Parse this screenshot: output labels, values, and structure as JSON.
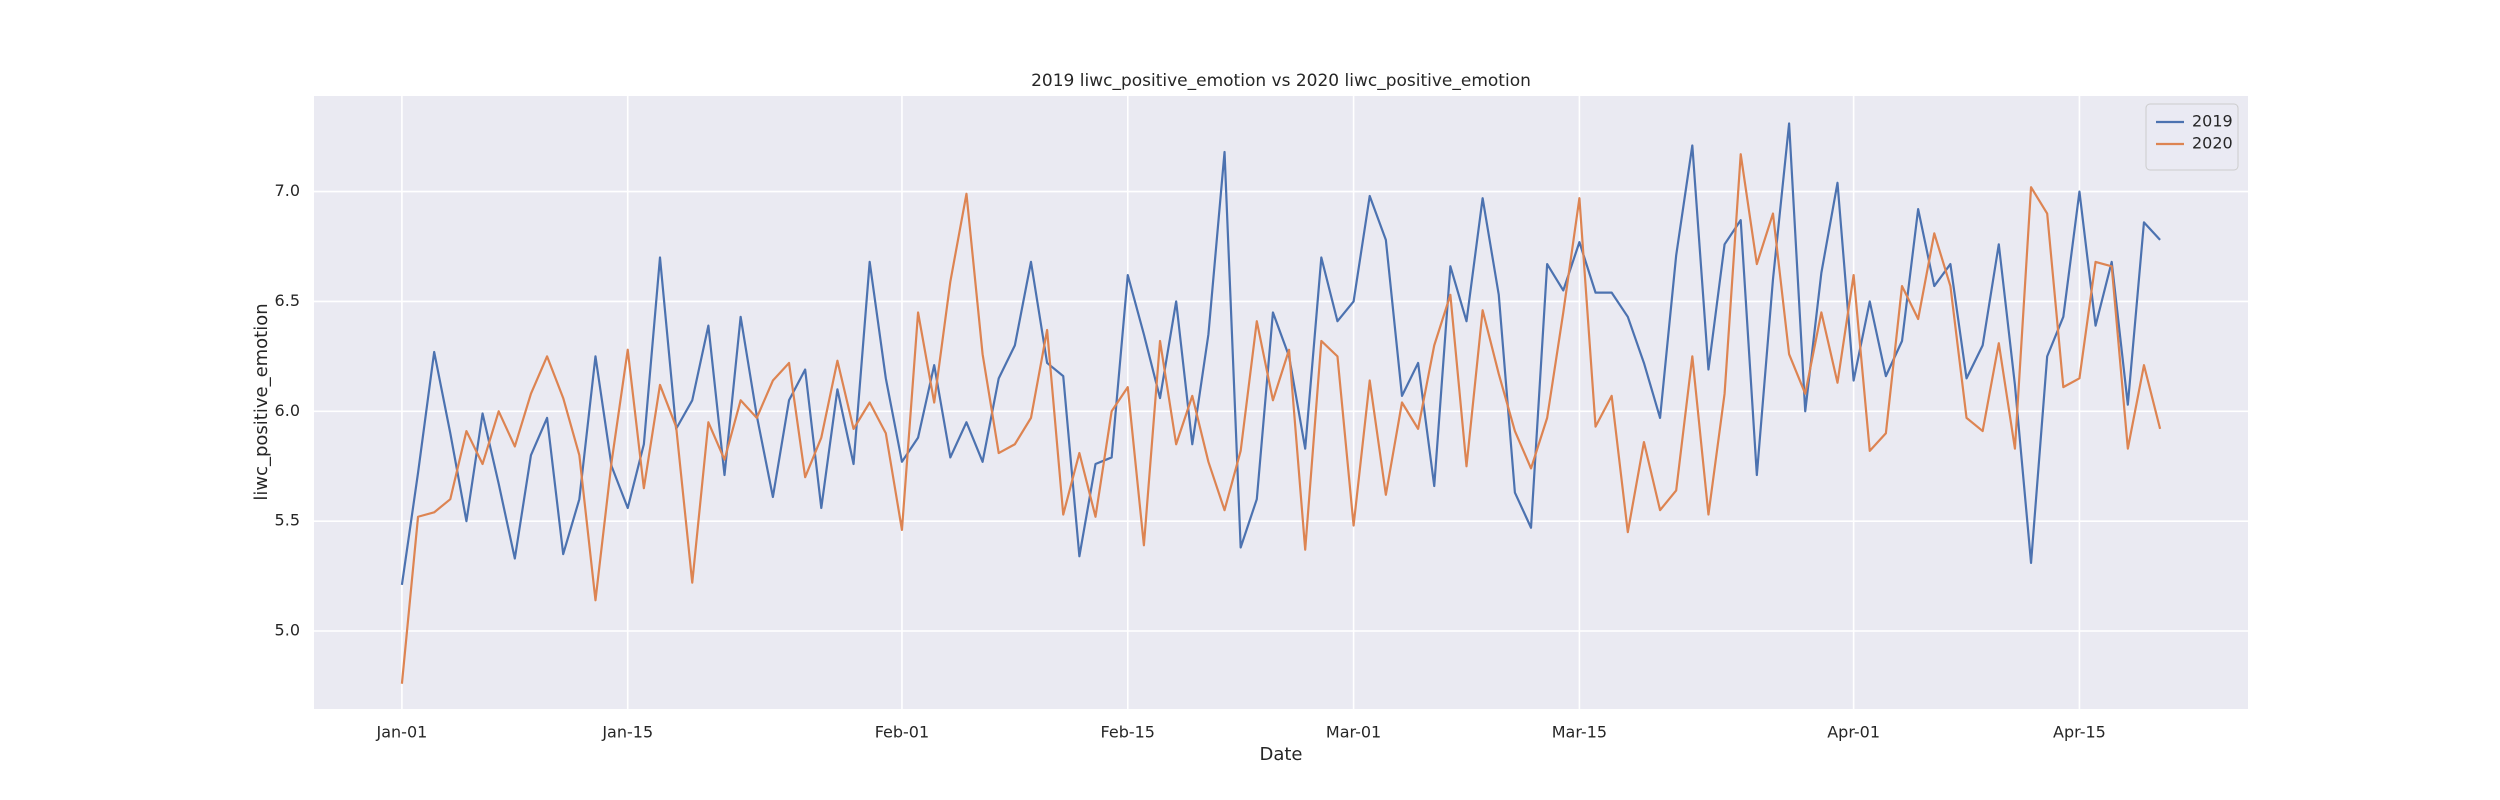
{
  "chart_data": {
    "type": "line",
    "title": "2019 liwc_positive_emotion vs 2020 liwc_positive_emotion",
    "xlabel": "Date",
    "ylabel": "liwc_positive_emotion",
    "x": [
      "Jan-01",
      "Jan-02",
      "Jan-03",
      "Jan-04",
      "Jan-05",
      "Jan-06",
      "Jan-07",
      "Jan-08",
      "Jan-09",
      "Jan-10",
      "Jan-11",
      "Jan-12",
      "Jan-13",
      "Jan-14",
      "Jan-15",
      "Jan-16",
      "Jan-17",
      "Jan-18",
      "Jan-19",
      "Jan-20",
      "Jan-21",
      "Jan-22",
      "Jan-23",
      "Jan-24",
      "Jan-25",
      "Jan-26",
      "Jan-27",
      "Jan-28",
      "Jan-29",
      "Jan-30",
      "Jan-31",
      "Feb-01",
      "Feb-02",
      "Feb-03",
      "Feb-04",
      "Feb-05",
      "Feb-06",
      "Feb-07",
      "Feb-08",
      "Feb-09",
      "Feb-10",
      "Feb-11",
      "Feb-12",
      "Feb-13",
      "Feb-14",
      "Feb-15",
      "Feb-16",
      "Feb-17",
      "Feb-18",
      "Feb-19",
      "Feb-20",
      "Feb-21",
      "Feb-22",
      "Feb-23",
      "Feb-24",
      "Feb-25",
      "Feb-26",
      "Feb-27",
      "Feb-28",
      "Mar-01",
      "Mar-02",
      "Mar-03",
      "Mar-04",
      "Mar-05",
      "Mar-06",
      "Mar-07",
      "Mar-08",
      "Mar-09",
      "Mar-10",
      "Mar-11",
      "Mar-12",
      "Mar-13",
      "Mar-14",
      "Mar-15",
      "Mar-16",
      "Mar-17",
      "Mar-18",
      "Mar-19",
      "Mar-20",
      "Mar-21",
      "Mar-22",
      "Mar-23",
      "Mar-24",
      "Mar-25",
      "Mar-26",
      "Mar-27",
      "Mar-28",
      "Mar-29",
      "Mar-30",
      "Mar-31",
      "Apr-01",
      "Apr-02",
      "Apr-03",
      "Apr-04",
      "Apr-05",
      "Apr-06",
      "Apr-07",
      "Apr-08",
      "Apr-09",
      "Apr-10",
      "Apr-11",
      "Apr-12",
      "Apr-13",
      "Apr-14",
      "Apr-15",
      "Apr-16",
      "Apr-17",
      "Apr-18",
      "Apr-19",
      "Apr-20"
    ],
    "series": [
      {
        "name": "2019",
        "color": "#4c72b0",
        "values": [
          5.21,
          5.72,
          6.27,
          5.9,
          5.5,
          5.99,
          5.67,
          5.33,
          5.8,
          5.97,
          5.35,
          5.6,
          6.25,
          5.75,
          5.56,
          5.85,
          6.7,
          5.92,
          6.05,
          6.39,
          5.71,
          6.43,
          5.98,
          5.61,
          6.05,
          6.19,
          5.56,
          6.1,
          5.76,
          6.68,
          6.15,
          5.77,
          5.88,
          6.21,
          5.79,
          5.95,
          5.77,
          6.15,
          6.3,
          6.68,
          6.22,
          6.16,
          5.34,
          5.76,
          5.79,
          6.62,
          6.35,
          6.06,
          6.5,
          5.85,
          6.35,
          7.18,
          5.38,
          5.6,
          6.45,
          6.25,
          5.83,
          6.7,
          6.41,
          6.5,
          6.98,
          6.78,
          6.07,
          6.22,
          5.66,
          6.66,
          6.41,
          6.97,
          6.53,
          5.63,
          5.47,
          6.67,
          6.55,
          6.77,
          6.54,
          6.54,
          6.43,
          6.22,
          5.97,
          6.71,
          7.21,
          6.19,
          6.76,
          6.87,
          5.71,
          6.6,
          7.31,
          6.0,
          6.63,
          7.04,
          6.14,
          6.5,
          6.16,
          6.32,
          6.92,
          6.57,
          6.67,
          6.15,
          6.3,
          6.76,
          6.12,
          5.31,
          6.25,
          6.43,
          7.0,
          6.39,
          6.68,
          6.03,
          6.86,
          6.78
        ]
      },
      {
        "name": "2020",
        "color": "#dd8452",
        "values": [
          4.76,
          5.52,
          5.54,
          5.6,
          5.91,
          5.76,
          6.0,
          5.84,
          6.08,
          6.25,
          6.06,
          5.8,
          5.14,
          5.77,
          6.28,
          5.65,
          6.12,
          5.93,
          5.22,
          5.95,
          5.78,
          6.05,
          5.97,
          6.14,
          6.22,
          5.7,
          5.88,
          6.23,
          5.92,
          6.04,
          5.9,
          5.46,
          6.45,
          6.04,
          6.59,
          6.99,
          6.26,
          5.81,
          5.85,
          5.97,
          6.37,
          5.53,
          5.81,
          5.52,
          6.0,
          6.11,
          5.39,
          6.32,
          5.85,
          6.07,
          5.77,
          5.55,
          5.82,
          6.41,
          6.05,
          6.28,
          5.37,
          6.32,
          6.25,
          5.48,
          6.14,
          5.62,
          6.04,
          5.92,
          6.3,
          6.53,
          5.75,
          6.46,
          6.17,
          5.91,
          5.74,
          5.97,
          6.45,
          6.97,
          5.93,
          6.07,
          5.45,
          5.86,
          5.55,
          5.64,
          6.25,
          5.53,
          6.08,
          7.17,
          6.67,
          6.9,
          6.26,
          6.08,
          6.45,
          6.13,
          6.62,
          5.82,
          5.9,
          6.57,
          6.42,
          6.81,
          6.57,
          5.97,
          5.91,
          6.31,
          5.83,
          7.02,
          6.9,
          6.11,
          6.15,
          6.68,
          6.66,
          5.83,
          6.21,
          5.92
        ]
      }
    ],
    "xticks": [
      "Jan-01",
      "Jan-15",
      "Feb-01",
      "Feb-15",
      "Mar-01",
      "Mar-15",
      "Apr-01",
      "Apr-15"
    ],
    "ylim": [
      4.645,
      7.435
    ],
    "yticks": [
      {
        "value": 5,
        "label": "5.0"
      },
      5.5,
      {
        "value": 6,
        "label": "6.0"
      },
      6.5,
      {
        "value": 7,
        "label": "7.0"
      }
    ],
    "grid": true,
    "legend": "upper right"
  }
}
